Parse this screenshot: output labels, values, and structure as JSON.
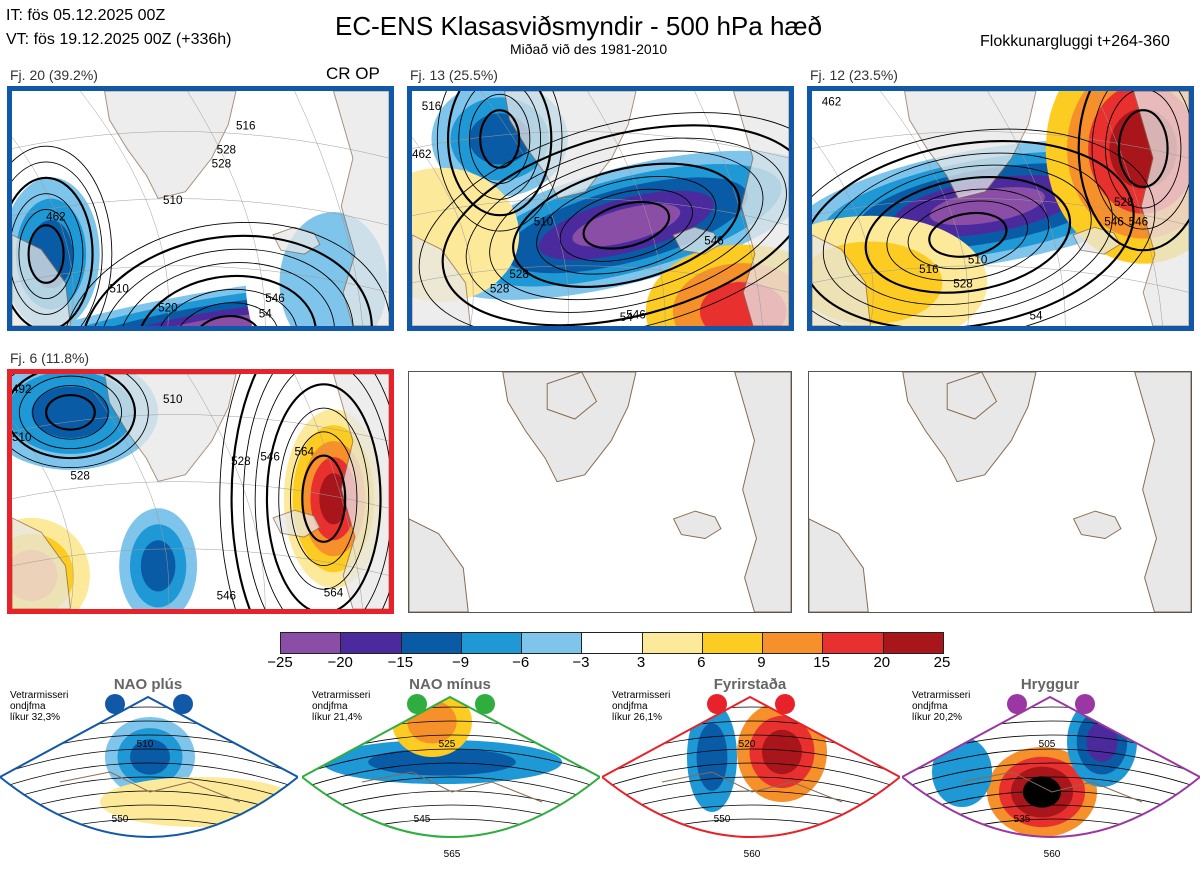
{
  "header": {
    "it_line": "IT: fös 05.12.2025 00Z",
    "vt_line": "VT: fös 19.12.2025 00Z  (+336h)",
    "title": "EC-ENS Klasasviðsmyndir - 500 hPa hæð",
    "subtitle": "Miðað við des 1981-2010",
    "window": "Flokkunargluggi t+264-360"
  },
  "colors": {
    "nao_plus": "#1258a8",
    "nao_minus": "#2fad3f",
    "blocking": "#e8222a",
    "ridge": "#9a37a2",
    "land": "#e8e8e8",
    "coast": "#8a6a4e"
  },
  "panels": [
    {
      "label": "Fj. 20 (39.2%)",
      "extra": "CR OP",
      "border": "#1258a8"
    },
    {
      "label": "Fj. 13 (25.5%)",
      "extra": "",
      "border": "#1258a8"
    },
    {
      "label": "Fj. 12 (23.5%)",
      "extra": "",
      "border": "#1258a8"
    },
    {
      "label": "Fj. 6 (11.8%)",
      "extra": "",
      "border": "#e8222a"
    },
    {
      "label": "",
      "extra": "",
      "border": "#555555"
    },
    {
      "label": "",
      "extra": "",
      "border": "#555555"
    }
  ],
  "panel_contours": [
    [
      "462",
      "510",
      "510",
      "528",
      "520",
      "546",
      "54",
      "516",
      "528"
    ],
    [
      "516",
      "510",
      "528",
      "546",
      "528",
      "546",
      "54",
      "462"
    ],
    [
      "462",
      "510",
      "516",
      "528",
      "528",
      "546",
      "546",
      "54"
    ],
    [
      "492",
      "510",
      "510",
      "528",
      "528",
      "546",
      "564",
      "546",
      "564"
    ]
  ],
  "chart_data": {
    "type": "heatmap",
    "title": "EC-ENS Klasasviðsmyndir - 500 hPa hæð",
    "colorbar": {
      "ticks": [
        "−25",
        "−20",
        "−15",
        "−9",
        "−6",
        "−3",
        "3",
        "6",
        "9",
        "15",
        "20",
        "25"
      ],
      "colors": [
        "#8a4ea6",
        "#4b2a9e",
        "#0a5ba5",
        "#1f98d6",
        "#7fc4ea",
        "#ffffff",
        "#fde99a",
        "#fdcc22",
        "#f6902a",
        "#e8312e",
        "#a8161b"
      ]
    }
  },
  "regimes": [
    {
      "name": "NAO plús",
      "info": [
        "Vetrarmisseri",
        "ondjfma",
        "líkur 32,3%"
      ],
      "color": "#1258a8",
      "contours": [
        "510",
        "550"
      ]
    },
    {
      "name": "NAO mínus",
      "info": [
        "Vetrarmisseri",
        "ondjfma",
        "líkur 21,4%"
      ],
      "color": "#2fad3f",
      "contours": [
        "525",
        "545",
        "565"
      ]
    },
    {
      "name": "Fyrirstaða",
      "info": [
        "Vetrarmisseri",
        "ondjfma",
        "líkur 26,1%"
      ],
      "color": "#e8222a",
      "contours": [
        "520",
        "550",
        "560"
      ]
    },
    {
      "name": "Hryggur",
      "info": [
        "Vetrarmisseri",
        "ondjfma",
        "líkur 20,2%"
      ],
      "color": "#9a37a2",
      "contours": [
        "505",
        "535",
        "560"
      ]
    }
  ]
}
